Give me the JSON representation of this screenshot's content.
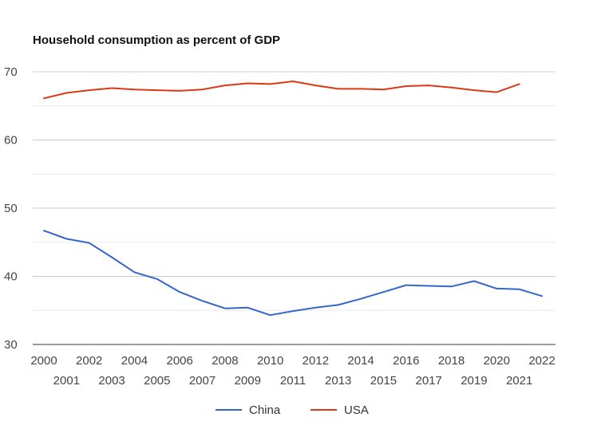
{
  "chart_data": {
    "type": "line",
    "title": "Household consumption as percent of GDP",
    "xlabel": "",
    "ylabel": "",
    "x": [
      "2000",
      "2001",
      "2002",
      "2003",
      "2004",
      "2005",
      "2006",
      "2007",
      "2008",
      "2009",
      "2010",
      "2011",
      "2012",
      "2013",
      "2014",
      "2015",
      "2016",
      "2017",
      "2018",
      "2019",
      "2020",
      "2021",
      "2022"
    ],
    "ylim": [
      30,
      70
    ],
    "yticks": [
      "30",
      "40",
      "50",
      "60",
      "70"
    ],
    "grid": true,
    "legend_position": "bottom",
    "series": [
      {
        "name": "China",
        "color": "#3366cc",
        "values": [
          46.7,
          45.5,
          44.9,
          42.8,
          40.6,
          39.6,
          37.7,
          36.4,
          35.3,
          35.4,
          34.3,
          34.9,
          35.4,
          35.8,
          36.7,
          37.7,
          38.7,
          38.6,
          38.5,
          39.3,
          38.2,
          38.1,
          37.1
        ]
      },
      {
        "name": "USA",
        "color": "#dc3912",
        "values": [
          66.1,
          66.9,
          67.3,
          67.6,
          67.4,
          67.3,
          67.2,
          67.4,
          68.0,
          68.3,
          68.2,
          68.6,
          68.0,
          67.5,
          67.5,
          67.4,
          67.9,
          68.0,
          67.7,
          67.3,
          67.0,
          68.2,
          null
        ]
      }
    ]
  }
}
